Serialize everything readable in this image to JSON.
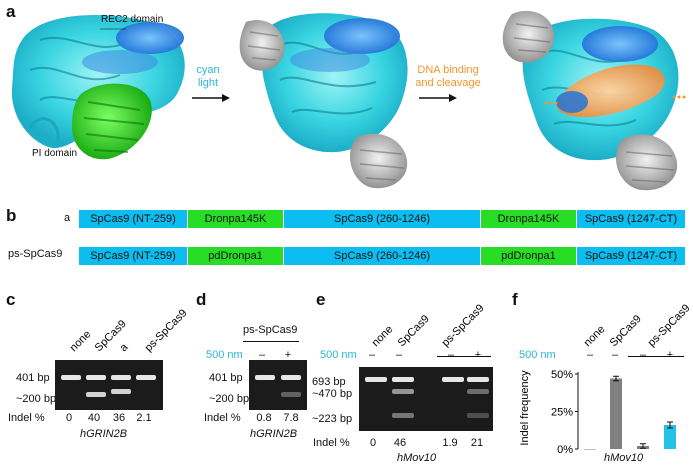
{
  "panel_a": {
    "label": "a",
    "rec2_label": "REC2 domain",
    "pi_label": "PI domain",
    "arrow1_line1": "cyan",
    "arrow1_line2": "light",
    "arrow2_line1": "DNA binding",
    "arrow2_line2": "and cleavage"
  },
  "panel_b": {
    "label": "b",
    "rows": [
      {
        "name": "a",
        "segments": [
          "SpCas9 (NT-259)",
          "Dronpa145K",
          "SpCas9 (260-1246)",
          "Dronpa145K",
          "SpCas9 (1247-CT)"
        ]
      },
      {
        "name": "ps-SpCas9",
        "segments": [
          "SpCas9 (NT-259)",
          "pdDronpa1",
          "SpCas9 (260-1246)",
          "pdDronpa1",
          "SpCas9 (1247-CT)"
        ]
      }
    ],
    "colors": {
      "cas9": "#0cbdf0",
      "dronpa": "#27dd25"
    }
  },
  "panel_c": {
    "label": "c",
    "lanes": [
      "none",
      "SpCas9",
      "a",
      "ps-SpCas9"
    ],
    "markers": [
      "401 bp",
      "~200 bp"
    ],
    "indel_label": "Indel %",
    "indel_values": [
      "0",
      "40",
      "36",
      "2.1"
    ],
    "gene": "hGRIN2B"
  },
  "panel_d": {
    "label": "d",
    "group_label": "ps-SpCas9",
    "light_label": "500 nm",
    "light_states": [
      "–",
      "+"
    ],
    "markers": [
      "401 bp",
      "~200 bp"
    ],
    "indel_label": "Indel %",
    "indel_values": [
      "0.8",
      "7.8"
    ],
    "gene": "hGRIN2B"
  },
  "panel_e": {
    "label": "e",
    "lanes": [
      "none",
      "SpCas9",
      "ps-SpCas9"
    ],
    "light_label": "500 nm",
    "light_states": [
      "–",
      "–",
      "–",
      "+"
    ],
    "markers": [
      "693 bp",
      "~470 bp",
      "~223 bp"
    ],
    "indel_label": "Indel %",
    "indel_values": [
      "0",
      "46",
      "1.9",
      "21"
    ],
    "gene": "hMov10"
  },
  "panel_f": {
    "label": "f",
    "lanes": [
      "none",
      "SpCas9",
      "ps-SpCas9"
    ],
    "light_label": "500 nm",
    "light_states": [
      "–",
      "–",
      "–",
      "+"
    ],
    "gene": "hMov10"
  },
  "chart_data": {
    "type": "bar",
    "categories": [
      "none",
      "SpCas9",
      "ps-SpCas9 –",
      "ps-SpCas9 +"
    ],
    "values": [
      0,
      47,
      2,
      16
    ],
    "errors": [
      0,
      1.5,
      1.5,
      2
    ],
    "bar_colors": [
      "#808080",
      "#808080",
      "#808080",
      "#25c2e8"
    ],
    "ylabel": "Indel frequency",
    "ylim": [
      0,
      50
    ],
    "yticks": [
      "0%",
      "25%",
      "50%"
    ],
    "xlabel": "hMov10"
  }
}
